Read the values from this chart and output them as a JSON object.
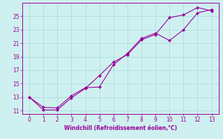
{
  "x": [
    0,
    1,
    2,
    3,
    4,
    5,
    6,
    7,
    8,
    9,
    10,
    11,
    12,
    13
  ],
  "line1_y": [
    13,
    11.1,
    11.1,
    12.9,
    14.3,
    16.2,
    18.2,
    19.3,
    21.5,
    22.3,
    24.8,
    25.2,
    26.3,
    25.8
  ],
  "line2_y": [
    13,
    11.5,
    11.4,
    13.2,
    14.4,
    14.5,
    17.8,
    19.5,
    21.7,
    22.5,
    21.4,
    23.0,
    25.5,
    26.0
  ],
  "xlabel": "Windchill (Refroidissement éolien,°C)",
  "ylim": [
    10.5,
    27.0
  ],
  "xlim": [
    -0.5,
    13.5
  ],
  "yticks": [
    11,
    13,
    15,
    17,
    19,
    21,
    23,
    25
  ],
  "xticks": [
    0,
    1,
    2,
    3,
    4,
    5,
    6,
    7,
    8,
    9,
    10,
    11,
    12,
    13
  ],
  "line_color": "#990099",
  "marker": "D",
  "marker_size": 2.0,
  "bg_color": "#cff0f0",
  "grid_color": "#aadddd",
  "tick_color": "#990099",
  "label_color": "#990099",
  "spine_color": "#990099"
}
